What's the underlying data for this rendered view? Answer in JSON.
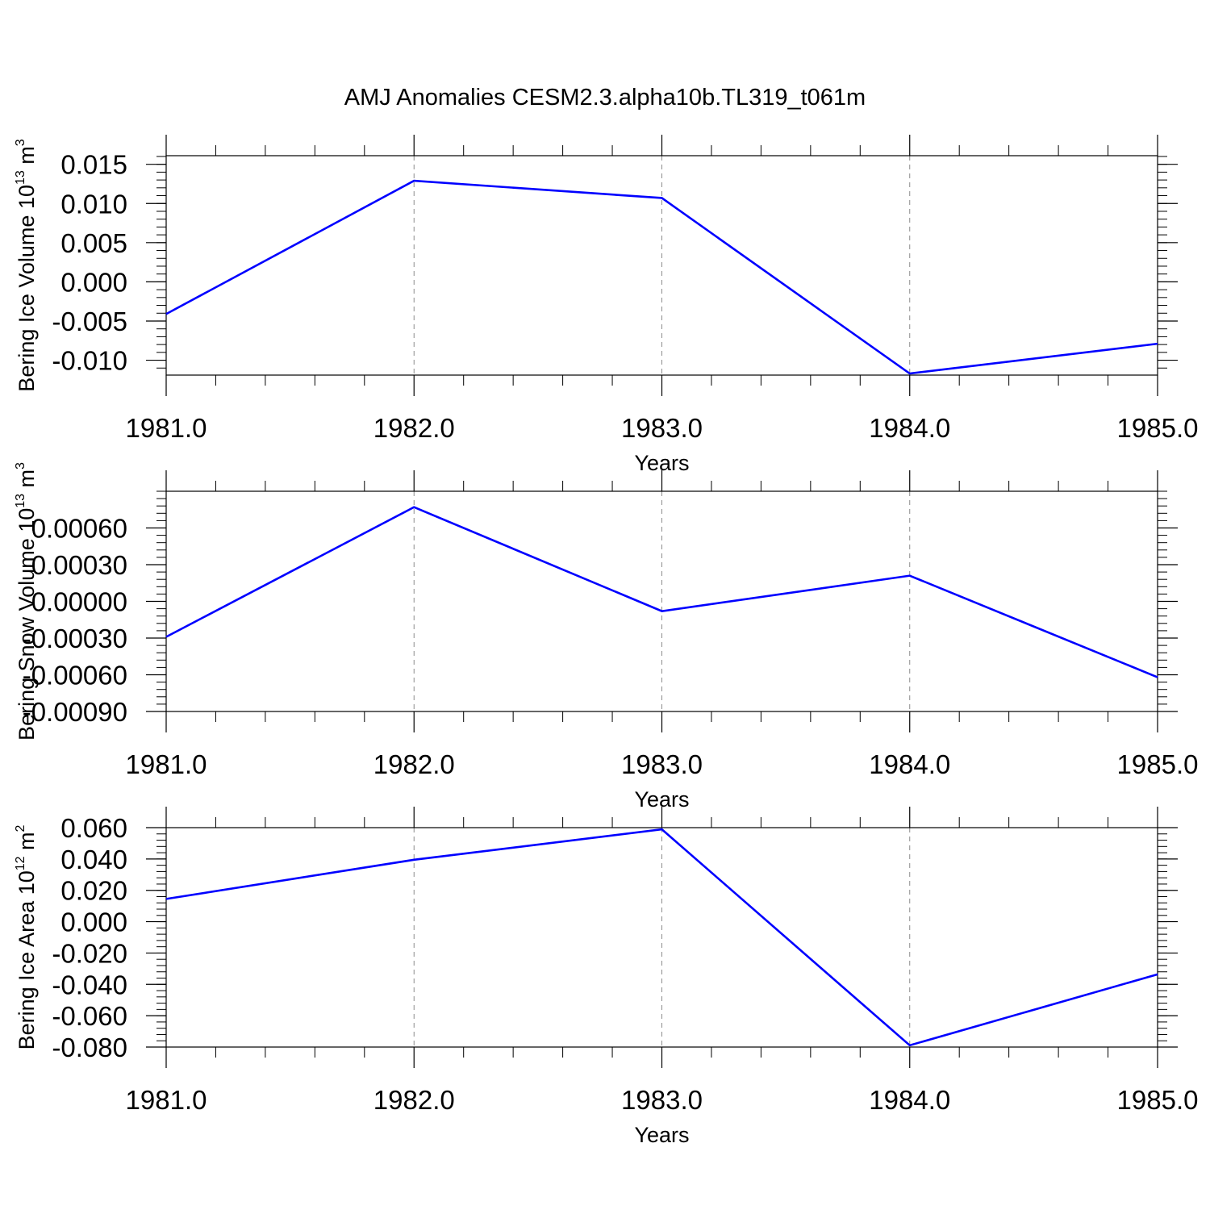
{
  "title": "AMJ Anomalies CESM2.3.alpha10b.TL319_t061m",
  "colors": {
    "line": "#0000ff",
    "axis": "#000000",
    "grid": "#8c8c8c"
  },
  "chart_data": [
    {
      "type": "line",
      "ylabel_prefix": "Bering Ice Volume 10",
      "ylabel_exp": "13",
      "ylabel_unit": " m",
      "ylabel_unit_exp": "3",
      "xlabel": "Years",
      "x": [
        1981,
        1982,
        1983,
        1984,
        1985
      ],
      "x_ticks": [
        "1981.0",
        "1982.0",
        "1983.0",
        "1984.0",
        "1985.0"
      ],
      "y": [
        -0.0041,
        0.0129,
        0.0107,
        -0.0117,
        -0.0079
      ],
      "y_ticks": [
        0.015,
        0.01,
        0.005,
        0.0,
        -0.005,
        -0.01
      ],
      "y_tick_labels": [
        "0.015",
        "0.010",
        "0.005",
        "0.000",
        "-0.005",
        "-0.010"
      ],
      "ylim": [
        -0.0119,
        0.0161
      ],
      "xlim": [
        1981,
        1985
      ],
      "grid": "vertical dashed at major x ticks"
    },
    {
      "type": "line",
      "ylabel_prefix": "Bering Snow Volume 10",
      "ylabel_exp": "13",
      "ylabel_unit": " m",
      "ylabel_unit_exp": "3",
      "xlabel": "Years",
      "x": [
        1981,
        1982,
        1983,
        1984,
        1985
      ],
      "x_ticks": [
        "1981.0",
        "1982.0",
        "1983.0",
        "1984.0",
        "1985.0"
      ],
      "y": [
        -0.00029,
        0.00077,
        -8e-05,
        0.00021,
        -0.00062
      ],
      "y_ticks": [
        0.0006,
        0.0003,
        0.0,
        -0.0003,
        -0.0006,
        -0.0009
      ],
      "y_tick_labels": [
        "0.00060",
        "0.00030",
        "0.00000",
        "-0.00030",
        "-0.00060",
        "-0.00090"
      ],
      "ylim": [
        -0.0009,
        0.0009
      ],
      "xlim": [
        1981,
        1985
      ],
      "grid": "vertical dashed at major x ticks"
    },
    {
      "type": "line",
      "ylabel_prefix": "Bering Ice Area 10",
      "ylabel_exp": "12",
      "ylabel_unit": " m",
      "ylabel_unit_exp": "2",
      "xlabel": "Years",
      "x": [
        1981,
        1982,
        1983,
        1984,
        1985
      ],
      "x_ticks": [
        "1981.0",
        "1982.0",
        "1983.0",
        "1984.0",
        "1985.0"
      ],
      "y": [
        0.0145,
        0.0395,
        0.0589,
        -0.0789,
        -0.0336
      ],
      "y_ticks": [
        0.06,
        0.04,
        0.02,
        0.0,
        -0.02,
        -0.04,
        -0.06,
        -0.08
      ],
      "y_tick_labels": [
        "0.060",
        "0.040",
        "0.020",
        "0.000",
        "-0.020",
        "-0.040",
        "-0.060",
        "-0.080"
      ],
      "ylim": [
        -0.08,
        0.06
      ],
      "xlim": [
        1981,
        1985
      ],
      "grid": "vertical dashed at major x ticks"
    }
  ]
}
